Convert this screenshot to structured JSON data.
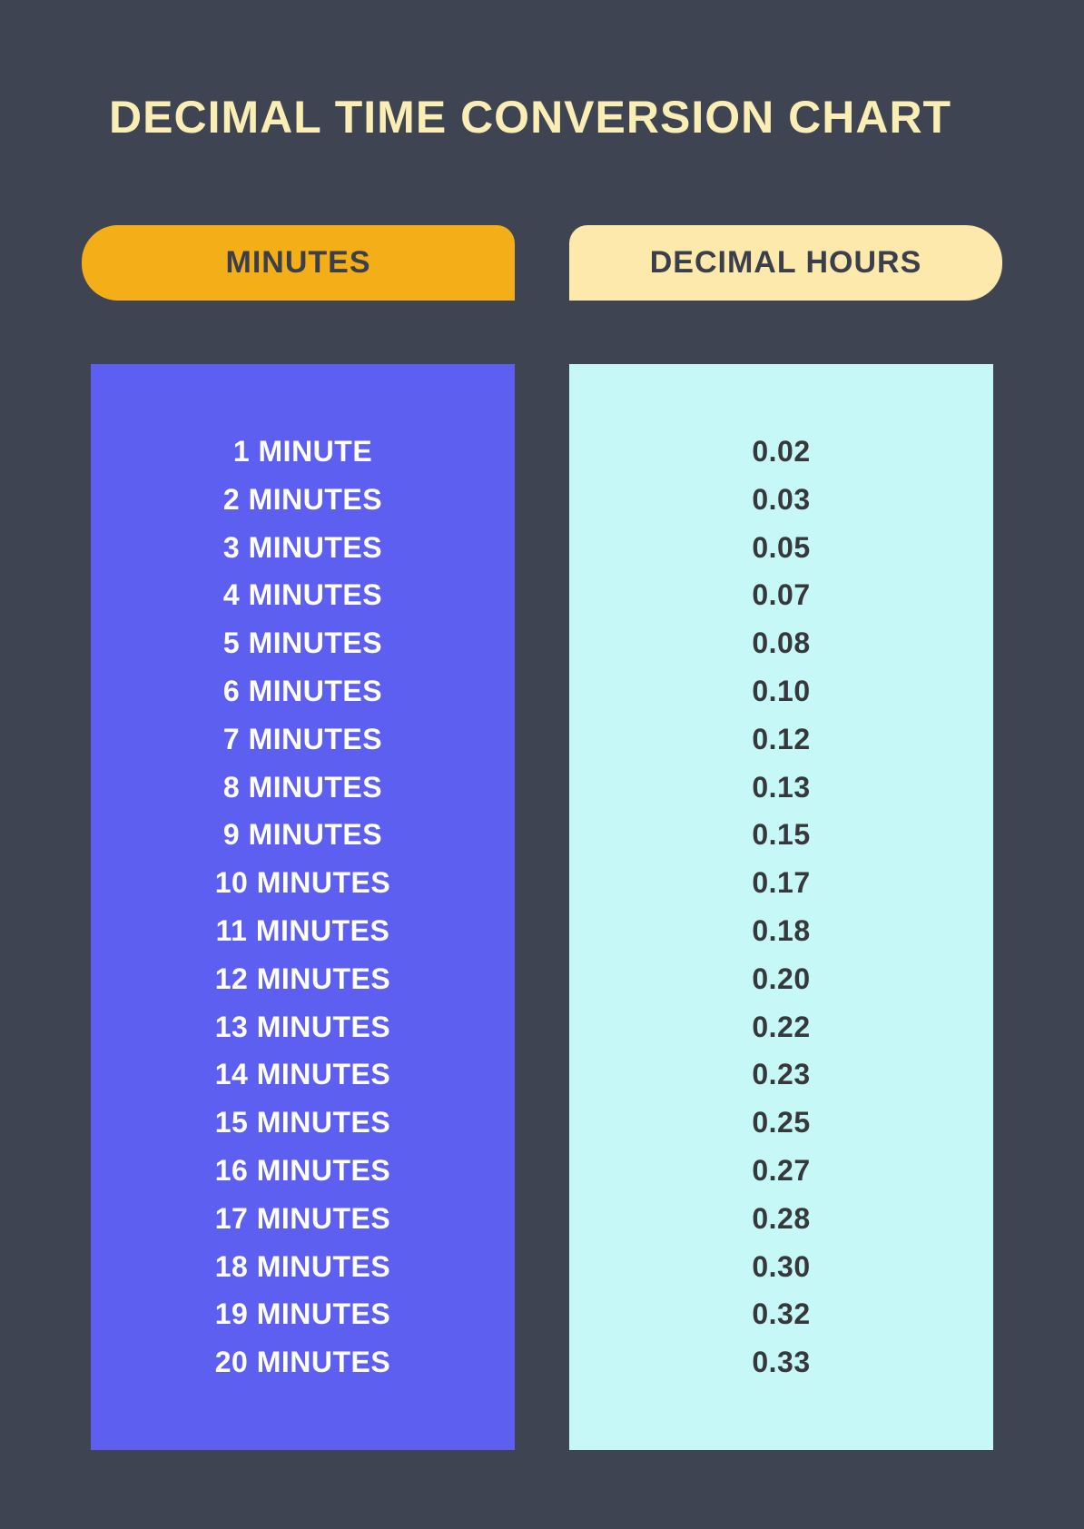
{
  "title": "DECIMAL TIME CONVERSION CHART",
  "headers": {
    "minutes": "MINUTES",
    "decimal_hours": "DECIMAL HOURS"
  },
  "colors": {
    "background": "#3f4453",
    "title": "#fbeeb4",
    "pill_left_bg": "#f4af18",
    "pill_right_bg": "#fde9ab",
    "pill_text": "#3b3f4b",
    "col_left_bg": "#5d5ff0",
    "col_left_text": "#ffffff",
    "col_right_bg": "#c6f8f7",
    "col_right_text": "#36383c"
  },
  "typography": {
    "title_fontsize": 50,
    "pill_fontsize": 34,
    "row_fontsize": 32,
    "font_weight": 900
  },
  "table": {
    "type": "table",
    "columns": [
      "MINUTES",
      "DECIMAL HOURS"
    ],
    "rows": [
      {
        "minutes": "1 MINUTE",
        "decimal": "0.02"
      },
      {
        "minutes": "2 MINUTES",
        "decimal": "0.03"
      },
      {
        "minutes": "3 MINUTES",
        "decimal": "0.05"
      },
      {
        "minutes": "4 MINUTES",
        "decimal": "0.07"
      },
      {
        "minutes": "5 MINUTES",
        "decimal": "0.08"
      },
      {
        "minutes": "6 MINUTES",
        "decimal": "0.10"
      },
      {
        "minutes": "7 MINUTES",
        "decimal": "0.12"
      },
      {
        "minutes": "8 MINUTES",
        "decimal": "0.13"
      },
      {
        "minutes": "9 MINUTES",
        "decimal": "0.15"
      },
      {
        "minutes": "10 MINUTES",
        "decimal": "0.17"
      },
      {
        "minutes": "11 MINUTES",
        "decimal": "0.18"
      },
      {
        "minutes": "12 MINUTES",
        "decimal": "0.20"
      },
      {
        "minutes": "13 MINUTES",
        "decimal": "0.22"
      },
      {
        "minutes": "14 MINUTES",
        "decimal": "0.23"
      },
      {
        "minutes": "15 MINUTES",
        "decimal": "0.25"
      },
      {
        "minutes": "16 MINUTES",
        "decimal": "0.27"
      },
      {
        "minutes": "17 MINUTES",
        "decimal": "0.28"
      },
      {
        "minutes": "18 MINUTES",
        "decimal": "0.30"
      },
      {
        "minutes": "19 MINUTES",
        "decimal": "0.32"
      },
      {
        "minutes": "20 MINUTES",
        "decimal": "0.33"
      }
    ]
  }
}
